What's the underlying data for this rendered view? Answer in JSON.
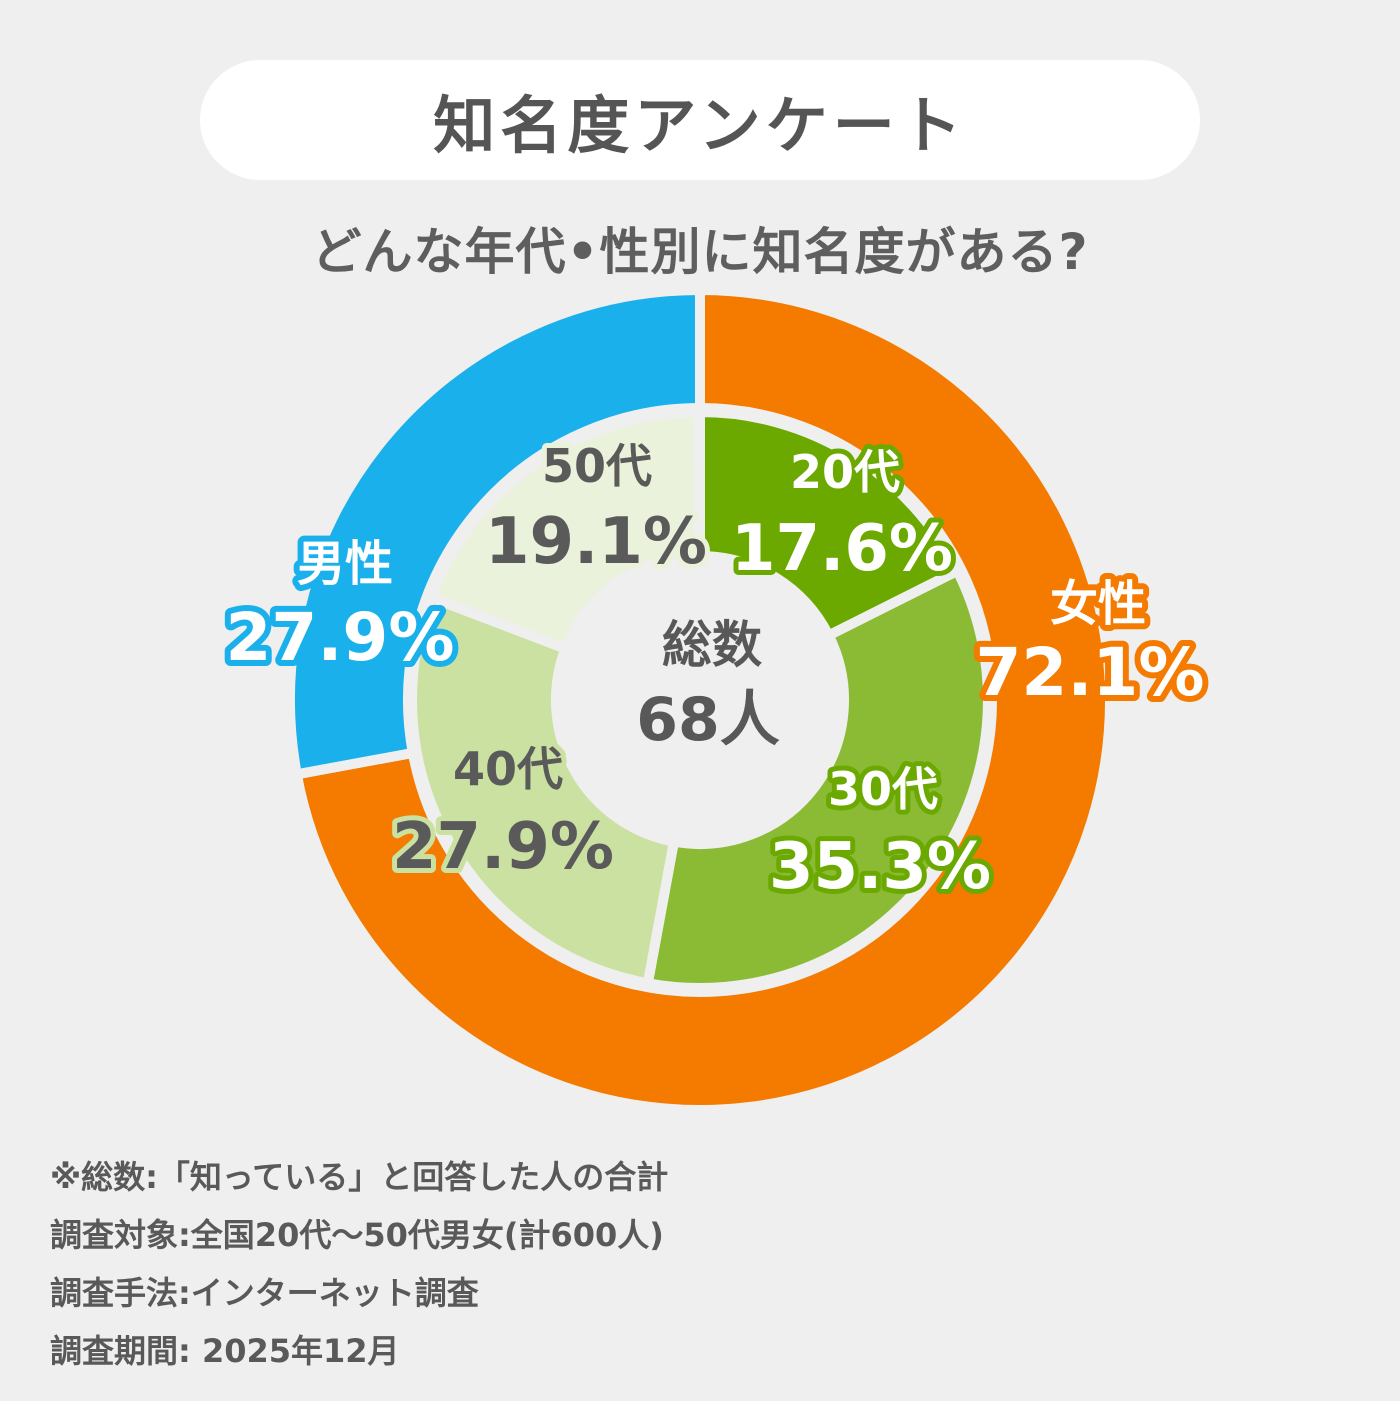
{
  "header": {
    "title": "知名度アンケート",
    "subtitle": "どんな年代•性別に知名度がある?"
  },
  "chart_data": {
    "type": "donut",
    "title": "知名度アンケート",
    "subtitle": "どんな年代•性別に知名度がある?",
    "center": {
      "label": "総数",
      "value": "68人"
    },
    "outer_ring": {
      "start": "top, clockwise",
      "slices": [
        {
          "key": "female",
          "name": "女性",
          "percent": 72.1,
          "label": "72.1%",
          "color": "#f47a00"
        },
        {
          "key": "male",
          "name": "男性",
          "percent": 27.9,
          "label": "27.9%",
          "color": "#1ab0ec"
        }
      ]
    },
    "inner_ring": {
      "start": "top, clockwise",
      "slices": [
        {
          "key": "age20",
          "name": "20代",
          "percent": 17.6,
          "label": "17.6%",
          "color": "#6ba901"
        },
        {
          "key": "age30",
          "name": "30代",
          "percent": 35.3,
          "label": "35.3%",
          "color": "#8bbb35"
        },
        {
          "key": "age40",
          "name": "40代",
          "percent": 27.9,
          "label": "27.9%",
          "color": "#cbe1a2"
        },
        {
          "key": "age50",
          "name": "50代",
          "percent": 19.1,
          "label": "19.1%",
          "color": "#eaf2db"
        }
      ]
    }
  },
  "notes": [
    "※総数:「知っている」と回答した人の合計",
    "調査対象:全国20代〜50代男女(計600人)",
    "調査手法:インターネット調査",
    "調査期間: 2025年12月"
  ]
}
